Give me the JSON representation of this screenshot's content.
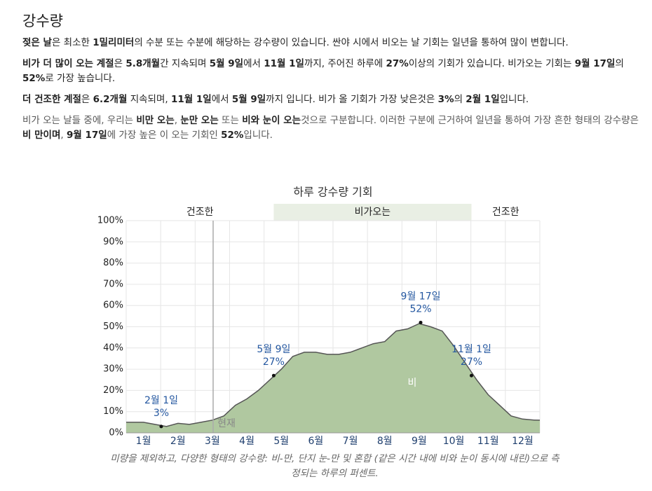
{
  "heading": "강수량",
  "paragraphs": [
    {
      "segments": [
        {
          "text": "젖은 날",
          "bold": true
        },
        {
          "text": "은 최소한 "
        },
        {
          "text": "1밀리미터",
          "bold": true
        },
        {
          "text": "의 수분 또는 수분에 해당하는 강수량이 있습니다. 싼야 시에서 비오는 날 기회는 일년을 통하여 많이 변합니다."
        }
      ]
    },
    {
      "segments": [
        {
          "text": "비가 더 많이 오는 계절",
          "bold": true
        },
        {
          "text": "은 "
        },
        {
          "text": "5.8개월",
          "bold": true
        },
        {
          "text": "간 지속되며 "
        },
        {
          "text": "5월 9일",
          "bold": true
        },
        {
          "text": "에서 "
        },
        {
          "text": "11월 1일",
          "bold": true
        },
        {
          "text": "까지, 주어진 하루에 "
        },
        {
          "text": "27%",
          "bold": true
        },
        {
          "text": "이상의 기회가 있습니다. 비가오는 기회는 "
        },
        {
          "text": "9월 17일",
          "bold": true
        },
        {
          "text": "의 "
        },
        {
          "text": "52%",
          "bold": true
        },
        {
          "text": "로 가장 높습니다."
        }
      ]
    },
    {
      "segments": [
        {
          "text": "더 건조한 계절",
          "bold": true
        },
        {
          "text": "은 "
        },
        {
          "text": "6.2개월",
          "bold": true
        },
        {
          "text": " 지속되며, "
        },
        {
          "text": "11월 1일",
          "bold": true
        },
        {
          "text": "에서 "
        },
        {
          "text": "5월 9일",
          "bold": true
        },
        {
          "text": "까지 입니다. 비가 올 기회가 가장 낮은것은 "
        },
        {
          "text": "3%",
          "bold": true
        },
        {
          "text": "의 "
        },
        {
          "text": "2월 1일",
          "bold": true
        },
        {
          "text": "입니다."
        }
      ]
    },
    {
      "muted": true,
      "segments": [
        {
          "text": "비가 오는 날들 중에, 우리는 "
        },
        {
          "text": "비만 오는",
          "bold": true
        },
        {
          "text": ", "
        },
        {
          "text": "눈만 오는",
          "bold": true
        },
        {
          "text": " 또는 "
        },
        {
          "text": "비와 눈이 오는",
          "bold": true
        },
        {
          "text": "것으로 구분합니다. 이러한 구분에 근거하여 일년을 통하여 가장 흔한 형태의 강수량은 "
        },
        {
          "text": "비 만이며",
          "bold": true
        },
        {
          "text": ", "
        },
        {
          "text": "9월 17일",
          "bold": true
        },
        {
          "text": "에 가장 높은 이 오는 기회인 "
        },
        {
          "text": "52%",
          "bold": true
        },
        {
          "text": "입니다."
        }
      ]
    }
  ],
  "chart_data": {
    "type": "area",
    "title": "하루 강수량 기회",
    "categories": [
      null,
      "1월",
      null,
      null,
      "2월",
      null,
      null,
      "3월",
      null,
      null,
      "4월",
      null,
      null,
      "5월",
      null,
      null,
      "6월",
      null,
      null,
      "7월",
      null,
      null,
      "8월",
      null,
      null,
      "9월",
      null,
      null,
      "10월",
      null,
      null,
      "11월",
      null,
      null,
      "12월",
      null
    ],
    "series": [
      {
        "name": "비",
        "color": "#b0c8a0",
        "values": [
          5,
          5,
          4,
          3,
          4.5,
          4,
          5,
          6,
          8,
          13,
          16,
          20,
          25,
          30,
          36,
          38,
          38,
          37,
          37,
          38,
          40,
          42,
          43,
          48,
          49,
          51.5,
          50,
          48,
          41,
          33,
          25,
          18,
          13,
          8,
          6.5,
          6
        ]
      }
    ],
    "ylim": [
      0,
      100
    ],
    "yticks": [
      {
        "value": 0,
        "label": "0%"
      },
      {
        "value": 10,
        "label": "10%"
      },
      {
        "value": 20,
        "label": "20%"
      },
      {
        "value": 30,
        "label": "30%"
      },
      {
        "value": 40,
        "label": "40%"
      },
      {
        "value": 50,
        "label": "50%"
      },
      {
        "value": 60,
        "label": "60%"
      },
      {
        "value": 70,
        "label": "70%"
      },
      {
        "value": 80,
        "label": "80%"
      },
      {
        "value": 90,
        "label": "90%"
      },
      {
        "value": 100,
        "label": "100%"
      }
    ],
    "grid": true,
    "annotations": [
      {
        "label": "2월 1일",
        "value": 3,
        "value_label": "3%"
      },
      {
        "label": "5월 9일",
        "value": 27,
        "value_label": "27%"
      },
      {
        "label": "9월 17일",
        "value": 52,
        "value_label": "52%"
      },
      {
        "label": "11월 1일",
        "value": 27,
        "value_label": "27%"
      }
    ],
    "seasons": [
      {
        "label": "건조한"
      },
      {
        "label": "비가오는",
        "color": "#e9efe4"
      },
      {
        "label": "건조한"
      }
    ],
    "now_label": "현재",
    "caption": "미량을 제외하고, 다양한 형태의 강수량: 비-만, 단지 눈-만 및 혼합 (같은 시간 내에 비와 눈이 동시에 내린)으로 측정되는 하루의 퍼센트."
  }
}
